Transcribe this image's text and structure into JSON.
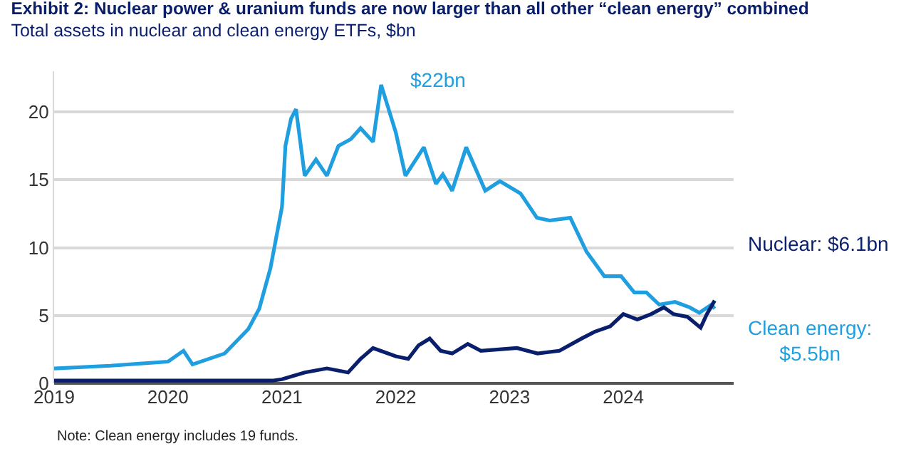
{
  "chart_data": {
    "type": "line",
    "title": "Exhibit 2: Nuclear power & uranium funds are now larger than all other “clean energy” combined",
    "subtitle": "Total assets in nuclear and clean energy ETFs, $bn",
    "series": [
      {
        "name": "Clean energy: $5.5bn",
        "color": "#1f9fdf",
        "x": [
          "2019-01-01",
          "2019-07-01",
          "2020-01-01",
          "2020-02-20",
          "2020-03-20",
          "2020-07-01",
          "2020-09-15",
          "2020-10-20",
          "2020-11-25",
          "2021-01-01",
          "2021-01-12",
          "2021-01-30",
          "2021-02-15",
          "2021-03-15",
          "2021-04-20",
          "2021-05-25",
          "2021-07-01",
          "2021-08-10",
          "2021-09-10",
          "2021-10-20",
          "2021-11-15",
          "2022-01-01",
          "2022-02-01",
          "2022-04-01",
          "2022-05-10",
          "2022-06-01",
          "2022-07-01",
          "2022-08-15",
          "2022-10-15",
          "2022-12-01",
          "2023-02-05",
          "2023-03-30",
          "2023-05-10",
          "2023-07-15",
          "2023-09-05",
          "2023-11-01",
          "2023-12-25",
          "2024-02-05",
          "2024-03-15",
          "2024-04-25",
          "2024-06-15",
          "2024-08-01",
          "2024-09-01",
          "2024-10-10",
          "2024-10-20"
        ],
        "values": [
          1.1,
          1.3,
          1.6,
          2.4,
          1.4,
          2.2,
          4.0,
          5.5,
          8.5,
          13,
          17.5,
          19.5,
          20.2,
          15.3,
          16.5,
          15.3,
          17.5,
          18,
          18.8,
          17.8,
          22,
          18.5,
          15.3,
          17.4,
          14.7,
          15.4,
          14.2,
          17.4,
          14.2,
          14.9,
          14,
          12.2,
          12,
          12.2,
          9.7,
          7.9,
          7.9,
          6.7,
          6.7,
          5.8,
          6.0,
          5.6,
          5.2,
          5.8,
          5.5
        ]
      },
      {
        "name": "Nuclear: $6.1bn",
        "color": "#0a1f6b",
        "x": [
          "2019-01-01",
          "2020-06-01",
          "2020-12-01",
          "2021-01-01",
          "2021-03-15",
          "2021-05-25",
          "2021-08-01",
          "2021-09-10",
          "2021-10-20",
          "2022-01-01",
          "2022-02-10",
          "2022-03-15",
          "2022-04-20",
          "2022-05-25",
          "2022-07-01",
          "2022-08-20",
          "2022-10-01",
          "2023-01-25",
          "2023-04-01",
          "2023-06-10",
          "2023-08-20",
          "2023-10-01",
          "2023-11-20",
          "2024-01-01",
          "2024-02-15",
          "2024-03-30",
          "2024-05-10",
          "2024-06-10",
          "2024-07-25",
          "2024-09-05",
          "2024-09-25",
          "2024-10-20"
        ],
        "values": [
          0.2,
          0.2,
          0.2,
          0.3,
          0.8,
          1.1,
          0.8,
          1.8,
          2.6,
          2.0,
          1.8,
          2.8,
          3.3,
          2.4,
          2.2,
          2.9,
          2.4,
          2.6,
          2.2,
          2.4,
          3.3,
          3.8,
          4.2,
          5.1,
          4.7,
          5.1,
          5.6,
          5.1,
          4.9,
          4.1,
          5.1,
          6.1
        ]
      }
    ],
    "xlim": [
      "2019-01-01",
      "2024-12-20"
    ],
    "xticks": [
      {
        "value": "2019-01-01",
        "label": "2019"
      },
      {
        "value": "2020-01-01",
        "label": "2020"
      },
      {
        "value": "2021-01-01",
        "label": "2021"
      },
      {
        "value": "2022-01-01",
        "label": "2022"
      },
      {
        "value": "2023-01-01",
        "label": "2023"
      },
      {
        "value": "2024-01-01",
        "label": "2024"
      }
    ],
    "ylim": [
      0,
      23
    ],
    "yticks": [
      0,
      5,
      10,
      15,
      20
    ],
    "grid": "y",
    "legend": false,
    "marker": "none",
    "line_style": "solid",
    "annotations": [
      {
        "text": "$22bn",
        "x": "2021-11-15",
        "y": 22
      },
      "Note: Clean energy includes 19 funds."
    ]
  }
}
